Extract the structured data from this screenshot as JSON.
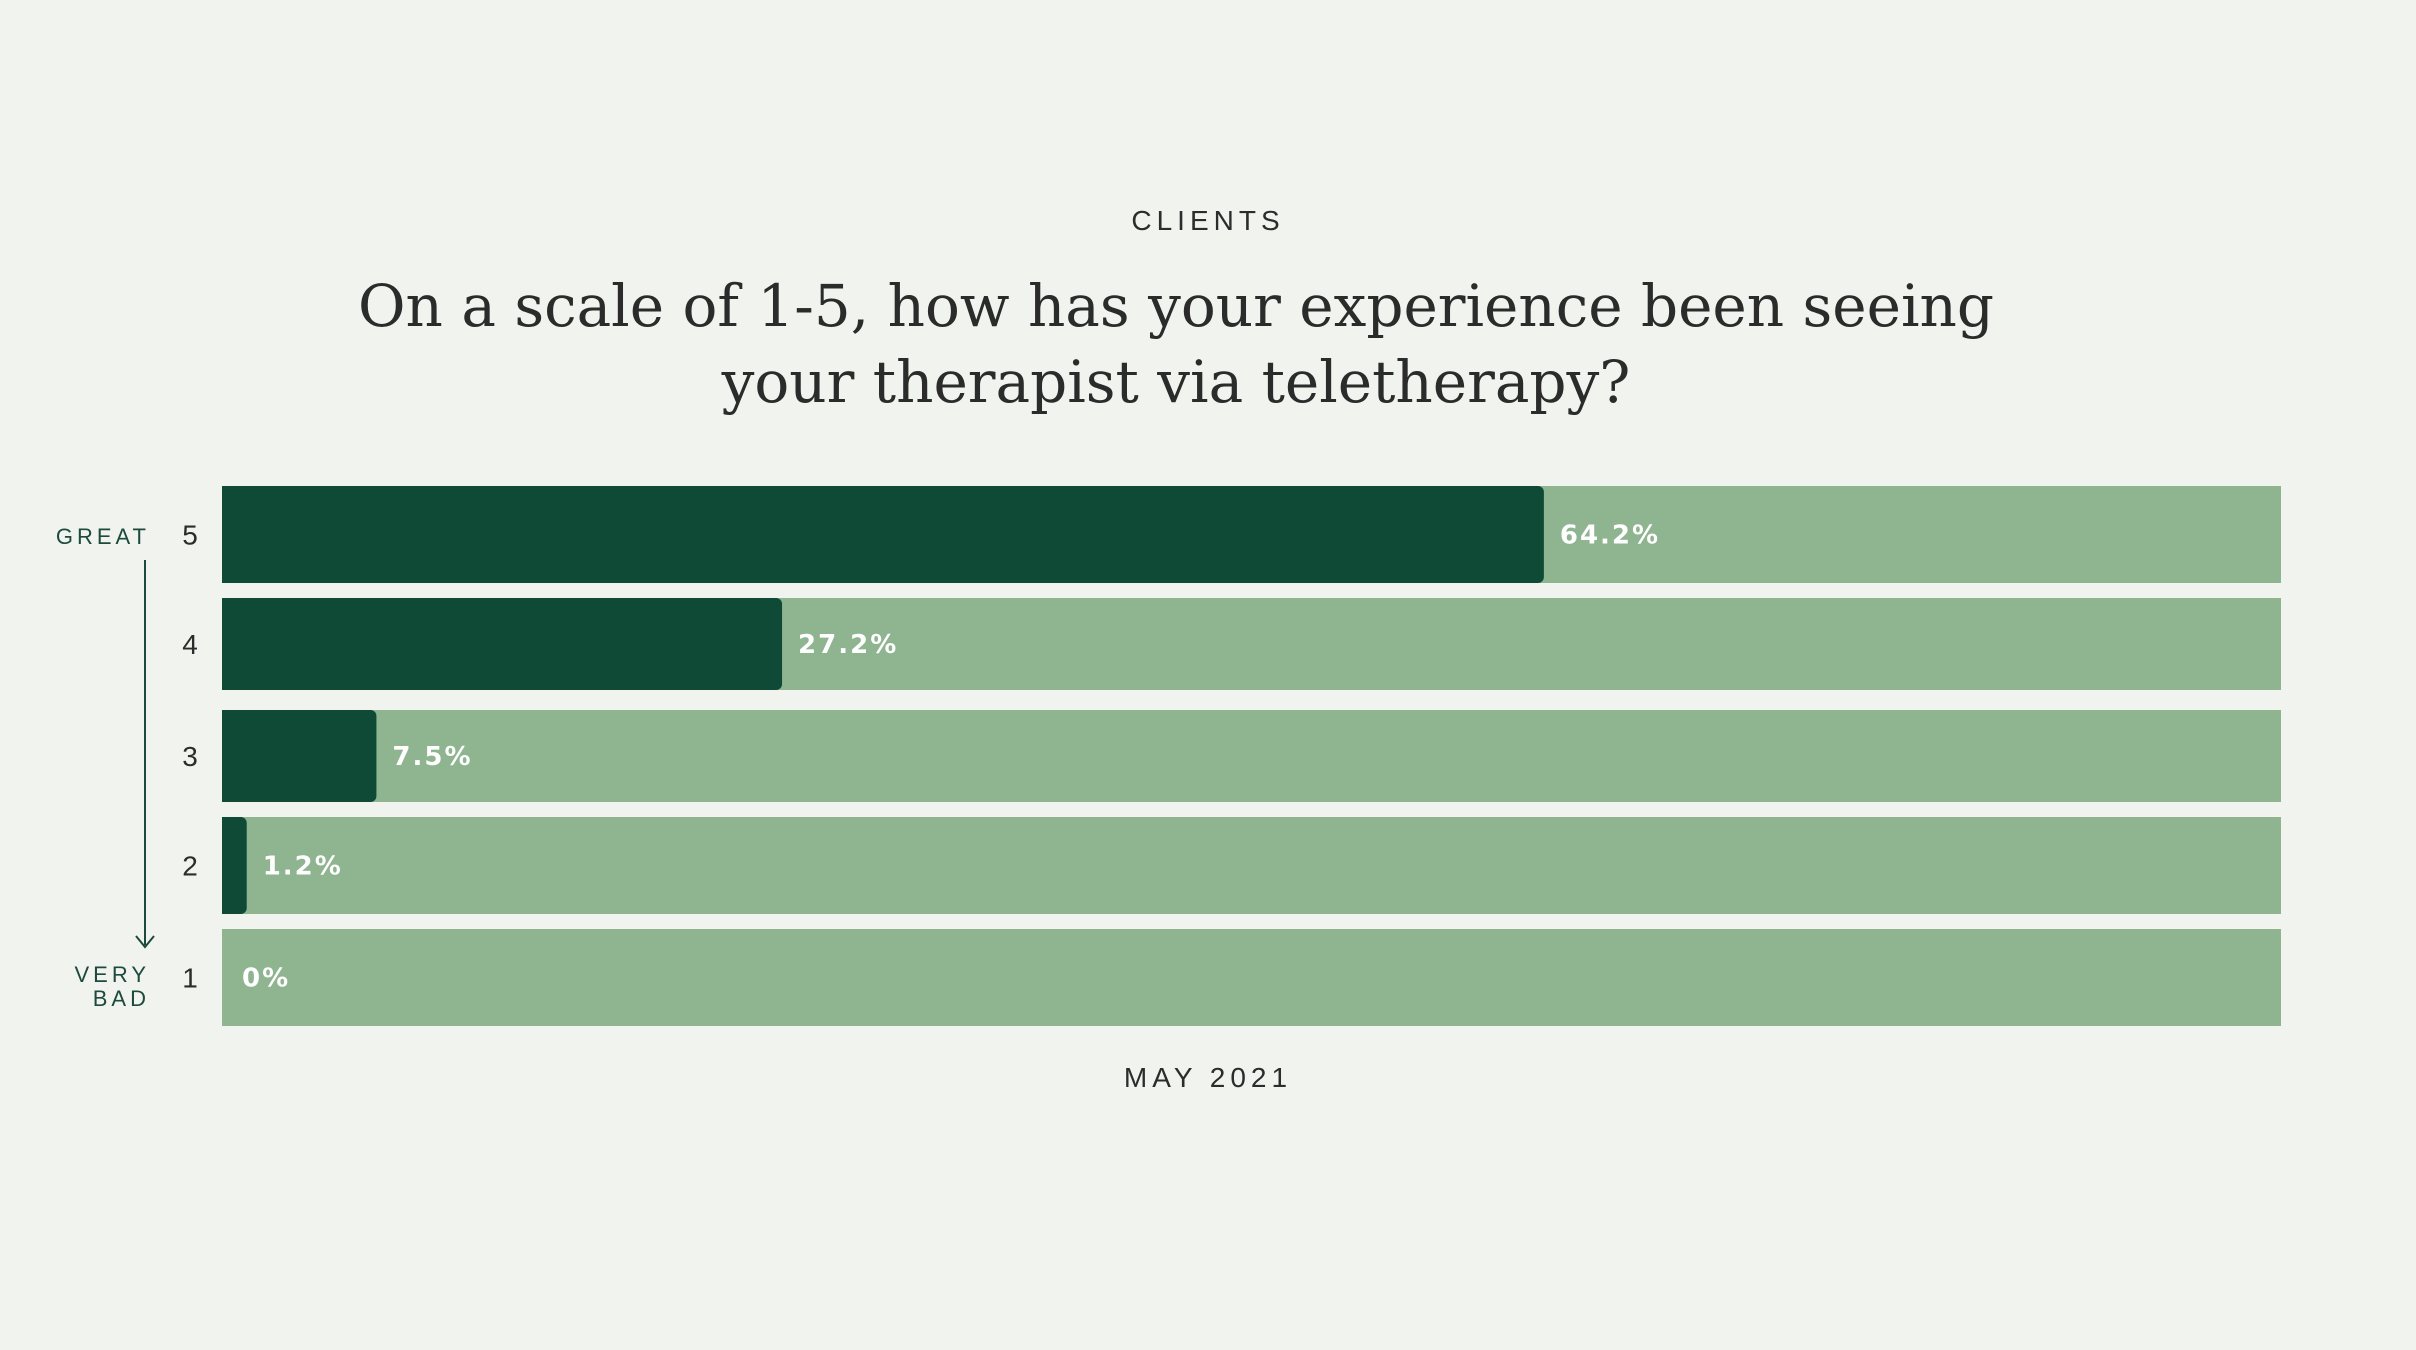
{
  "header": {
    "eyebrow": "CLIENTS",
    "title_line1": "On a scale of 1-5, how has your experience been seeing",
    "title_line2": "your therapist via teletherapy?"
  },
  "footer": {
    "date": "MAY 2021"
  },
  "scale": {
    "top_label": "GREAT",
    "bottom_label_line1": "VERY",
    "bottom_label_line2": "BAD"
  },
  "colors": {
    "background": "#f1f3ee",
    "track": "#8fb490",
    "fill": "#0e4a36",
    "label": "#ffffff"
  },
  "chart_data": {
    "type": "bar",
    "orientation": "horizontal",
    "title": "On a scale of 1-5, how has your experience been seeing your therapist via teletherapy?",
    "categories": [
      "5",
      "4",
      "3",
      "2",
      "1"
    ],
    "values": [
      64.2,
      27.2,
      7.5,
      1.2,
      0
    ],
    "value_labels": [
      "64.2%",
      "27.2%",
      "7.5%",
      "1.2%",
      "0%"
    ],
    "xlim": [
      0,
      100
    ],
    "grid": false
  }
}
